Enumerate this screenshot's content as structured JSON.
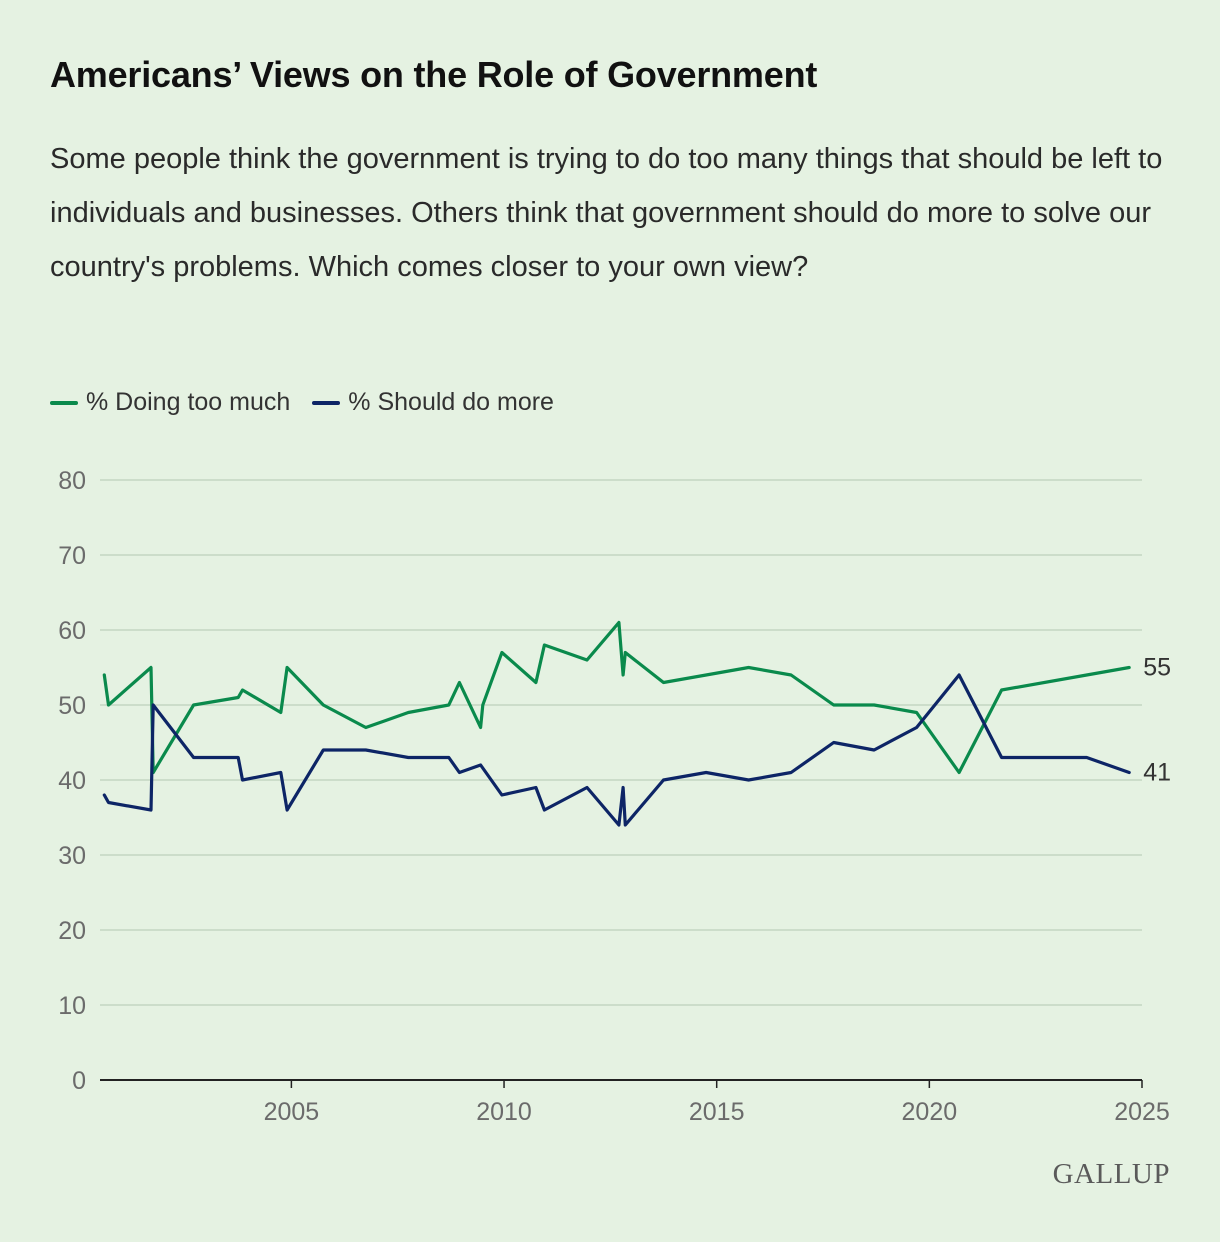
{
  "header": {
    "title": "Americans’ Views on the Role of Government",
    "subtitle": "Some people think the government is trying to do too many things that should be left to individuals and businesses. Others think that government should do more to solve our country's problems. Which comes closer to your own view?"
  },
  "legend": [
    {
      "label": "% Doing too much",
      "color": "#0a8a4c"
    },
    {
      "label": "% Should do more",
      "color": "#0d2566"
    }
  ],
  "logo": "GALLUP",
  "chart_data": {
    "type": "line",
    "ylim": [
      0,
      80
    ],
    "yticks": [
      0,
      10,
      20,
      30,
      40,
      50,
      60,
      70,
      80
    ],
    "xlim": [
      2000.5,
      2025
    ],
    "xticks": [
      2005,
      2010,
      2015,
      2020,
      2025
    ],
    "grid": true,
    "legend_position": "top-left",
    "end_labels": [
      "55",
      "41"
    ],
    "series": [
      {
        "name": "% Doing too much",
        "color": "#0a8a4c",
        "x": [
          2000.6,
          2000.7,
          2001.7,
          2001.75,
          2002.7,
          2003.75,
          2003.85,
          2004.75,
          2004.9,
          2005.75,
          2006.75,
          2007.75,
          2008.7,
          2008.95,
          2009.45,
          2009.5,
          2009.95,
          2010.75,
          2010.95,
          2011.95,
          2012.7,
          2012.8,
          2012.85,
          2013.75,
          2014.75,
          2015.75,
          2016.75,
          2017.75,
          2018.7,
          2019.7,
          2020.7,
          2021.7,
          2023.7,
          2024.7
        ],
        "values": [
          54,
          50,
          55,
          41,
          50,
          51,
          52,
          49,
          55,
          50,
          47,
          49,
          50,
          53,
          47,
          50,
          57,
          53,
          58,
          56,
          61,
          54,
          57,
          53,
          54,
          55,
          54,
          50,
          50,
          49,
          41,
          52,
          54,
          55
        ]
      },
      {
        "name": "% Should do more",
        "color": "#0d2566",
        "x": [
          2000.6,
          2000.7,
          2001.7,
          2001.75,
          2002.7,
          2003.75,
          2003.85,
          2004.75,
          2004.9,
          2005.75,
          2006.75,
          2007.75,
          2008.7,
          2008.95,
          2009.45,
          2009.95,
          2010.75,
          2010.95,
          2011.95,
          2012.7,
          2012.8,
          2012.85,
          2013.75,
          2014.75,
          2015.75,
          2016.75,
          2017.75,
          2018.7,
          2019.7,
          2020.7,
          2021.7,
          2023.7,
          2024.7
        ],
        "values": [
          38,
          37,
          36,
          50,
          43,
          43,
          40,
          41,
          36,
          44,
          44,
          43,
          43,
          41,
          42,
          38,
          39,
          36,
          39,
          34,
          39,
          34,
          40,
          41,
          40,
          41,
          45,
          44,
          47,
          54,
          43,
          43,
          41
        ]
      }
    ]
  }
}
